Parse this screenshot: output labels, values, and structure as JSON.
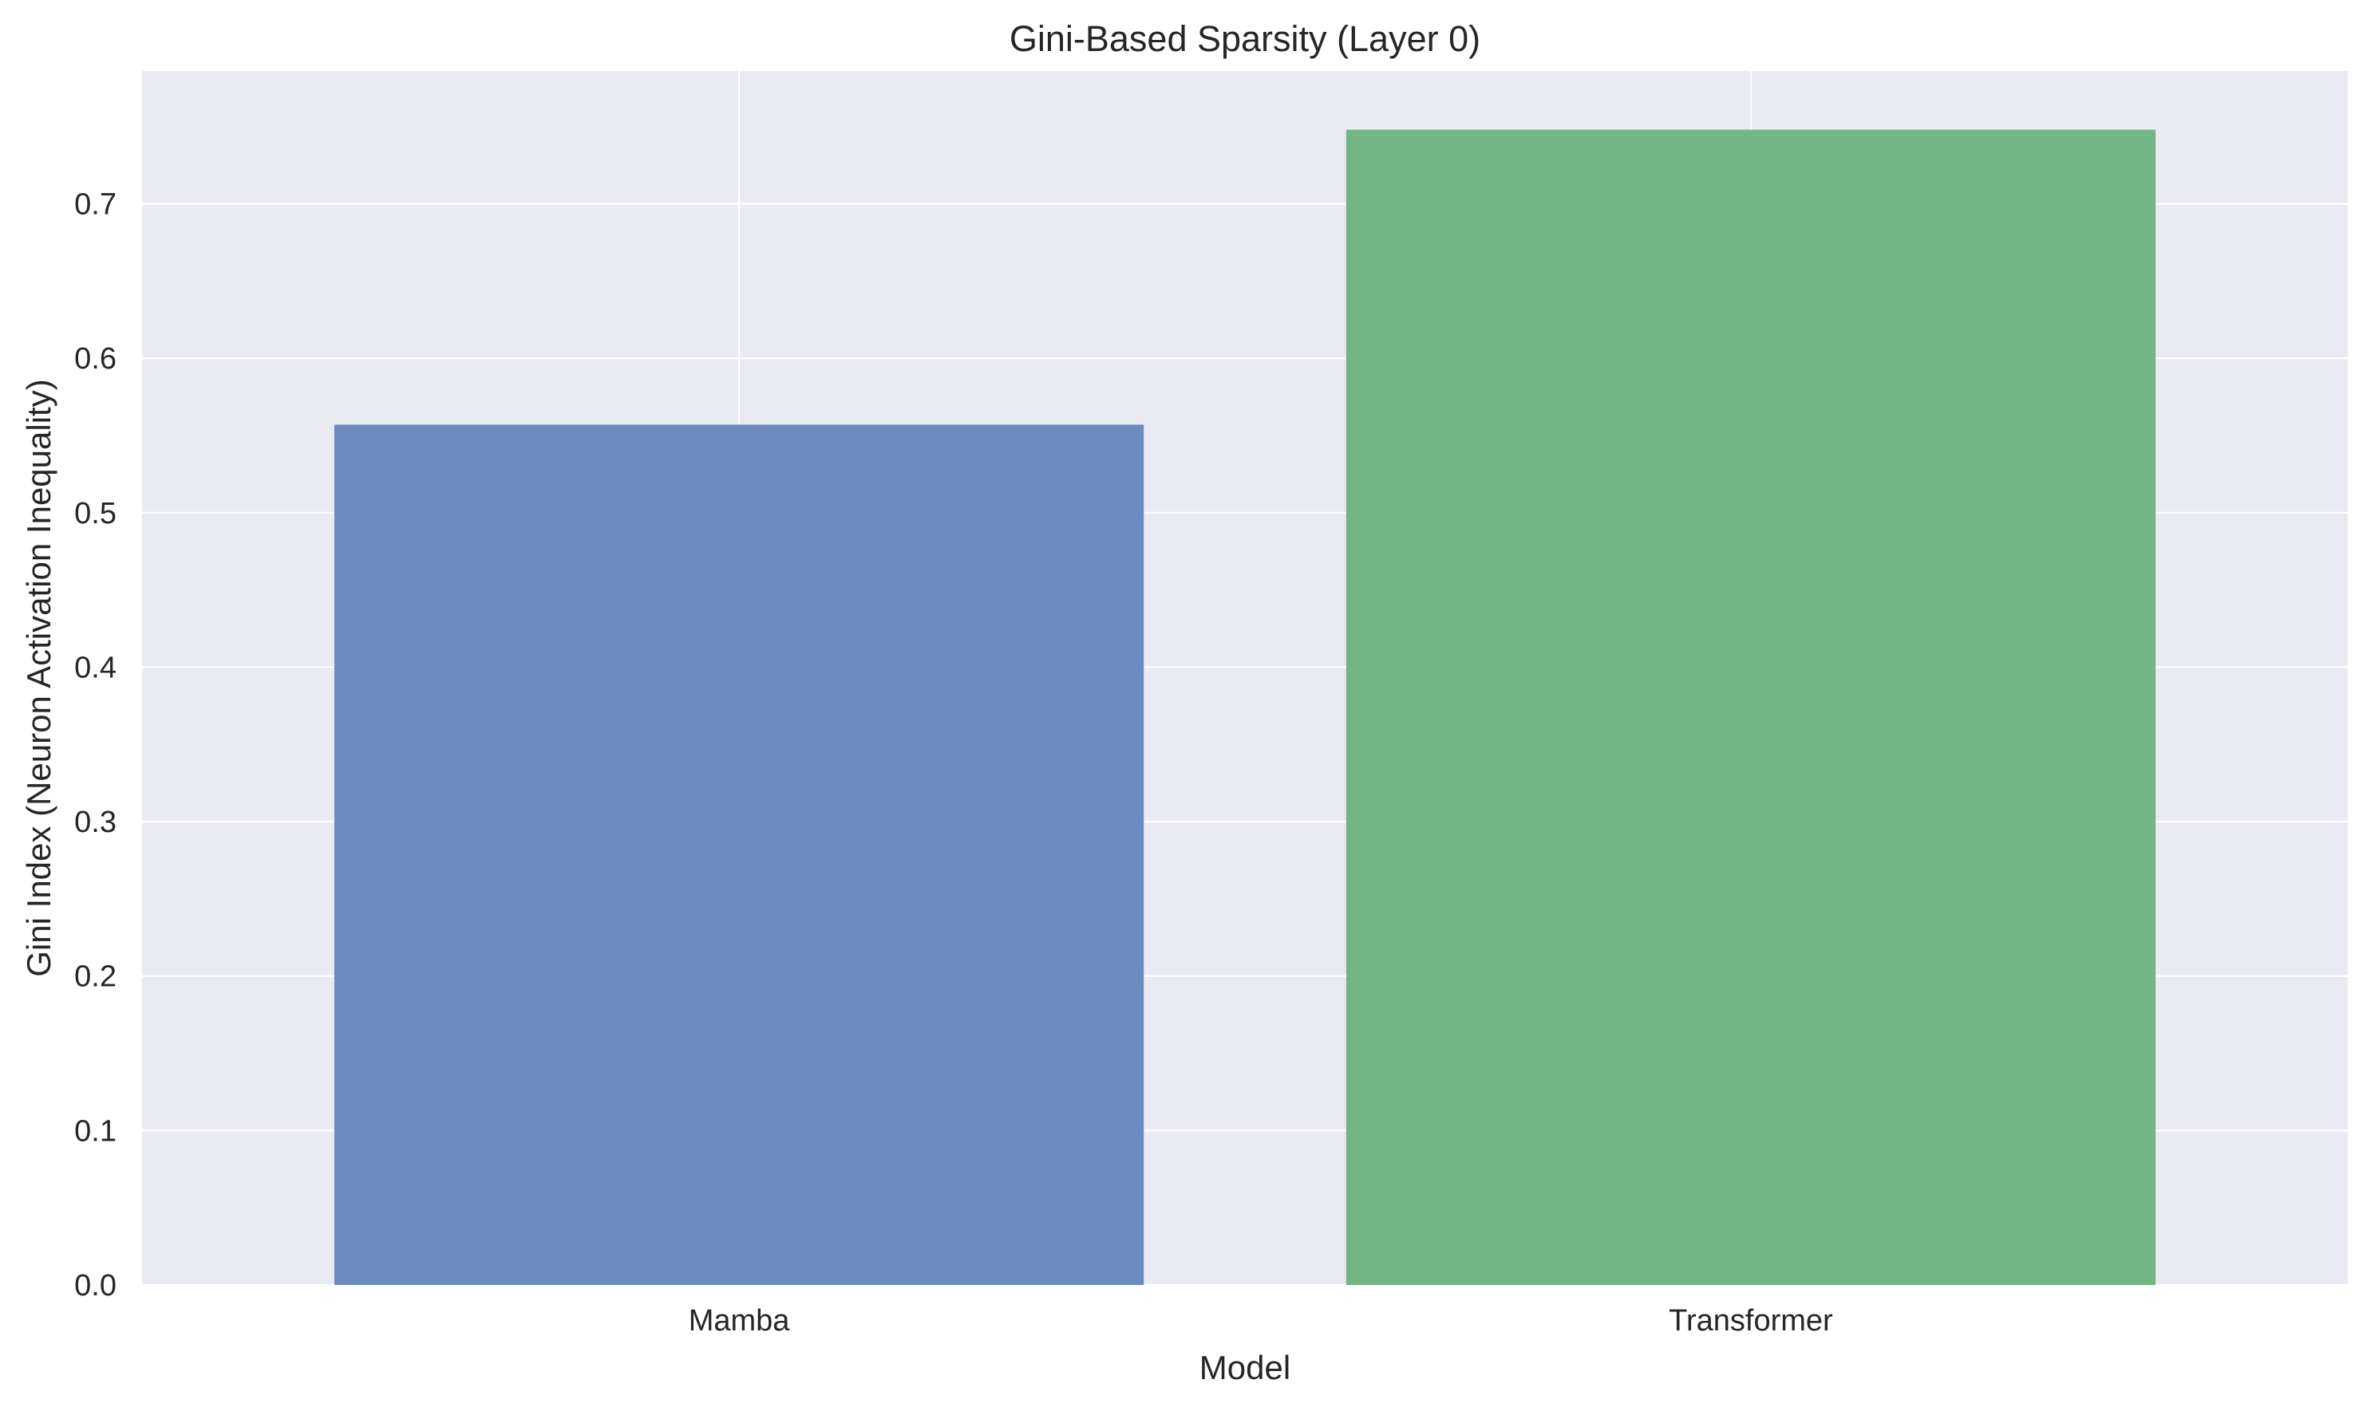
{
  "chart_data": {
    "type": "bar",
    "title": "Gini-Based Sparsity (Layer 0)",
    "xlabel": "Model",
    "ylabel": "Gini Index (Neuron Activation Inequality)",
    "categories": [
      "Mamba",
      "Transformer"
    ],
    "values": [
      0.557,
      0.748
    ],
    "colors": [
      "#6b8bbf",
      "#74b586"
    ],
    "ylim": [
      0,
      0.786
    ],
    "yticks": [
      0.0,
      0.1,
      0.2,
      0.3,
      0.4,
      0.5,
      0.6,
      0.7
    ],
    "ytick_labels": [
      "0.0",
      "0.1",
      "0.2",
      "0.3",
      "0.4",
      "0.5",
      "0.6",
      "0.7"
    ],
    "grid": true,
    "legend": "none",
    "background_color": "#eaeaf2",
    "grid_color": "#ffffff",
    "text_color": "#262626"
  }
}
